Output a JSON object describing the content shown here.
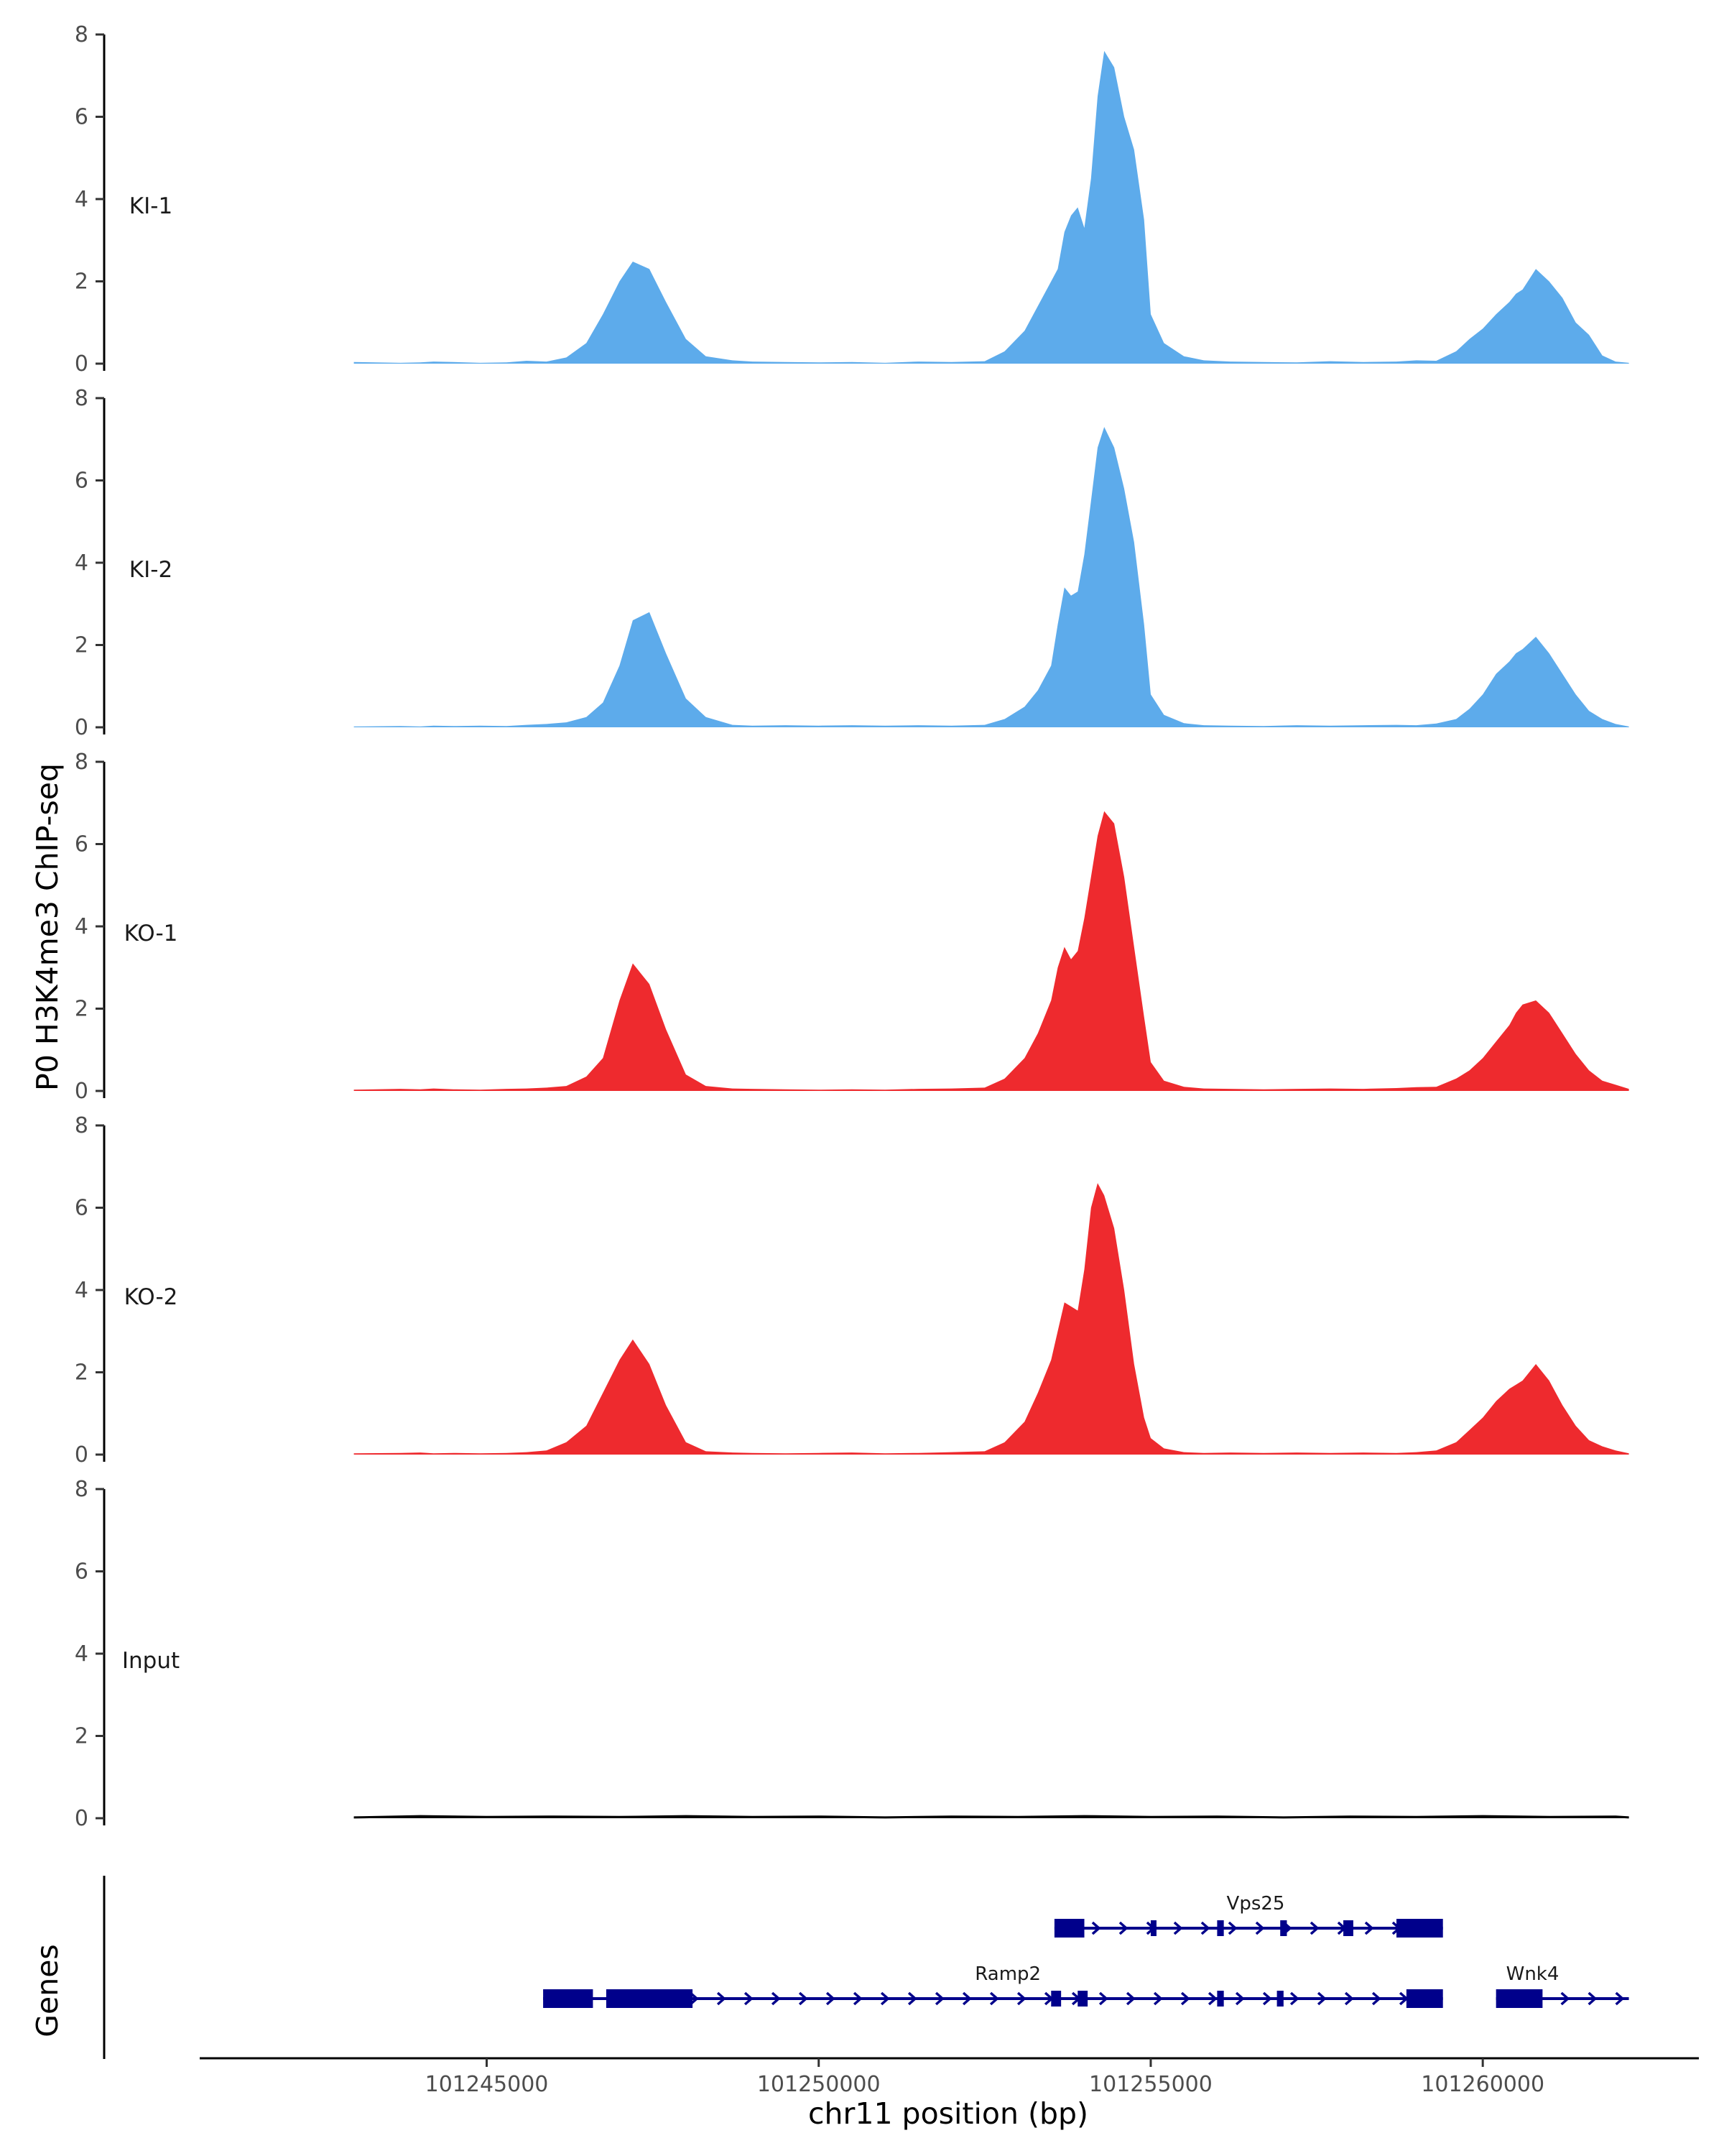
{
  "chart_data": {
    "type": "area",
    "ylabel": "P0 H3K4me3 ChIP-seq",
    "xlabel": "chr11 position (bp)",
    "genes_axis_label": "Genes",
    "ylim": [
      0,
      8
    ],
    "y_ticks": [
      "0",
      "2",
      "4",
      "6",
      "8"
    ],
    "xlim": [
      101240700,
      101263200
    ],
    "x_ticks": [
      {
        "value": 101245000,
        "label": "101245000"
      },
      {
        "value": 101250000,
        "label": "101250000"
      },
      {
        "value": 101255000,
        "label": "101255000"
      },
      {
        "value": 101260000,
        "label": "101260000"
      }
    ],
    "grid": false,
    "colors": {
      "KI": "#5dabeb",
      "KO": "#ee2a2e",
      "Input": "#000000",
      "genes": "#00008b"
    },
    "tracks": [
      {
        "name": "KI-1",
        "color": "#5dabeb",
        "x": [
          101243000,
          101243700,
          101244000,
          101244200,
          101244500,
          101244900,
          101245300,
          101245600,
          101245900,
          101246200,
          101246500,
          101246750,
          101247000,
          101247200,
          101247450,
          101247700,
          101248000,
          101248300,
          101248700,
          101249000,
          101249500,
          101250000,
          101250500,
          101251000,
          101251500,
          101252000,
          101252500,
          101252800,
          101253100,
          101253300,
          101253500,
          101253600,
          101253700,
          101253800,
          101253900,
          101254000,
          101254100,
          101254200,
          101254300,
          101254450,
          101254600,
          101254750,
          101254900,
          101255000,
          101255200,
          101255500,
          101255800,
          101256200,
          101256700,
          101257200,
          101257700,
          101258200,
          101258700,
          101259000,
          101259300,
          101259600,
          101259800,
          101260000,
          101260200,
          101260400,
          101260500,
          101260600,
          101260800,
          101261000,
          101261200,
          101261400,
          101261600,
          101261800,
          101262000,
          101262200
        ],
        "y": [
          0.04,
          0.02,
          0.03,
          0.05,
          0.04,
          0.02,
          0.03,
          0.07,
          0.05,
          0.15,
          0.5,
          1.2,
          2.0,
          2.48,
          2.3,
          1.5,
          0.6,
          0.18,
          0.08,
          0.05,
          0.04,
          0.03,
          0.04,
          0.02,
          0.05,
          0.04,
          0.06,
          0.3,
          0.8,
          1.4,
          2.0,
          2.3,
          3.2,
          3.6,
          3.8,
          3.3,
          4.5,
          6.5,
          7.6,
          7.2,
          6.0,
          5.2,
          3.5,
          1.2,
          0.5,
          0.18,
          0.08,
          0.05,
          0.04,
          0.03,
          0.06,
          0.04,
          0.05,
          0.08,
          0.07,
          0.3,
          0.6,
          0.85,
          1.2,
          1.5,
          1.7,
          1.8,
          2.3,
          2.0,
          1.6,
          1.0,
          0.7,
          0.2,
          0.05,
          0.02
        ]
      },
      {
        "name": "KI-2",
        "color": "#5dabeb",
        "x": [
          101243000,
          101243700,
          101244000,
          101244200,
          101244500,
          101244900,
          101245300,
          101245600,
          101245900,
          101246200,
          101246500,
          101246750,
          101247000,
          101247200,
          101247450,
          101247700,
          101248000,
          101248300,
          101248700,
          101249000,
          101249500,
          101250000,
          101250500,
          101251000,
          101251500,
          101252000,
          101252500,
          101252800,
          101253100,
          101253300,
          101253500,
          101253600,
          101253700,
          101253800,
          101253900,
          101254000,
          101254100,
          101254200,
          101254300,
          101254450,
          101254600,
          101254750,
          101254900,
          101255000,
          101255200,
          101255500,
          101255800,
          101256200,
          101256700,
          101257200,
          101257700,
          101258200,
          101258700,
          101259000,
          101259300,
          101259600,
          101259800,
          101260000,
          101260200,
          101260400,
          101260500,
          101260600,
          101260800,
          101261000,
          101261200,
          101261400,
          101261600,
          101261800,
          101262000,
          101262200
        ],
        "y": [
          0.02,
          0.03,
          0.02,
          0.04,
          0.03,
          0.04,
          0.03,
          0.06,
          0.08,
          0.12,
          0.25,
          0.6,
          1.5,
          2.6,
          2.8,
          1.8,
          0.7,
          0.25,
          0.06,
          0.04,
          0.05,
          0.04,
          0.05,
          0.04,
          0.05,
          0.04,
          0.06,
          0.2,
          0.5,
          0.9,
          1.5,
          2.5,
          3.4,
          3.2,
          3.3,
          4.2,
          5.5,
          6.8,
          7.3,
          6.8,
          5.8,
          4.5,
          2.5,
          0.8,
          0.3,
          0.1,
          0.05,
          0.04,
          0.03,
          0.05,
          0.04,
          0.05,
          0.06,
          0.05,
          0.09,
          0.2,
          0.45,
          0.8,
          1.3,
          1.6,
          1.8,
          1.9,
          2.2,
          1.8,
          1.3,
          0.8,
          0.4,
          0.2,
          0.08,
          0.02
        ]
      },
      {
        "name": "KO-1",
        "color": "#ee2a2e",
        "x": [
          101243000,
          101243700,
          101244000,
          101244200,
          101244500,
          101244900,
          101245300,
          101245600,
          101245900,
          101246200,
          101246500,
          101246750,
          101247000,
          101247200,
          101247450,
          101247700,
          101248000,
          101248300,
          101248700,
          101249000,
          101249500,
          101250000,
          101250500,
          101251000,
          101251500,
          101252000,
          101252500,
          101252800,
          101253100,
          101253300,
          101253500,
          101253600,
          101253700,
          101253800,
          101253900,
          101254000,
          101254100,
          101254200,
          101254300,
          101254450,
          101254600,
          101254750,
          101254900,
          101255000,
          101255200,
          101255500,
          101255800,
          101256200,
          101256700,
          101257200,
          101257700,
          101258200,
          101258700,
          101259000,
          101259300,
          101259600,
          101259800,
          101260000,
          101260200,
          101260400,
          101260500,
          101260600,
          101260800,
          101261000,
          101261200,
          101261400,
          101261600,
          101261800,
          101262000,
          101262200
        ],
        "y": [
          0.03,
          0.05,
          0.04,
          0.06,
          0.04,
          0.03,
          0.05,
          0.06,
          0.08,
          0.12,
          0.35,
          0.8,
          2.2,
          3.1,
          2.6,
          1.5,
          0.4,
          0.12,
          0.06,
          0.05,
          0.04,
          0.03,
          0.04,
          0.03,
          0.05,
          0.06,
          0.08,
          0.3,
          0.8,
          1.4,
          2.2,
          3.0,
          3.5,
          3.2,
          3.4,
          4.2,
          5.2,
          6.2,
          6.8,
          6.5,
          5.2,
          3.5,
          1.8,
          0.7,
          0.25,
          0.1,
          0.06,
          0.05,
          0.04,
          0.05,
          0.06,
          0.05,
          0.07,
          0.09,
          0.1,
          0.3,
          0.5,
          0.8,
          1.2,
          1.6,
          1.9,
          2.1,
          2.2,
          1.9,
          1.4,
          0.9,
          0.5,
          0.25,
          0.15,
          0.05
        ]
      },
      {
        "name": "KO-2",
        "color": "#ee2a2e",
        "x": [
          101243000,
          101243700,
          101244000,
          101244200,
          101244500,
          101244900,
          101245300,
          101245600,
          101245900,
          101246200,
          101246500,
          101246750,
          101247000,
          101247200,
          101247450,
          101247700,
          101248000,
          101248300,
          101248700,
          101249000,
          101249500,
          101250000,
          101250500,
          101251000,
          101251500,
          101252000,
          101252500,
          101252800,
          101253100,
          101253300,
          101253500,
          101253600,
          101253700,
          101253800,
          101253900,
          101254000,
          101254100,
          101254200,
          101254300,
          101254450,
          101254600,
          101254750,
          101254900,
          101255000,
          101255200,
          101255500,
          101255800,
          101256200,
          101256700,
          101257200,
          101257700,
          101258200,
          101258700,
          101259000,
          101259300,
          101259600,
          101259800,
          101260000,
          101260200,
          101260400,
          101260500,
          101260600,
          101260800,
          101261000,
          101261200,
          101261400,
          101261600,
          101261800,
          101262000,
          101262200
        ],
        "y": [
          0.03,
          0.04,
          0.05,
          0.03,
          0.04,
          0.03,
          0.04,
          0.06,
          0.1,
          0.3,
          0.7,
          1.5,
          2.3,
          2.8,
          2.2,
          1.2,
          0.3,
          0.08,
          0.05,
          0.04,
          0.03,
          0.04,
          0.05,
          0.03,
          0.04,
          0.06,
          0.08,
          0.3,
          0.8,
          1.5,
          2.3,
          3.0,
          3.7,
          3.6,
          3.5,
          4.5,
          6.0,
          6.6,
          6.3,
          5.5,
          4.0,
          2.2,
          0.9,
          0.4,
          0.15,
          0.06,
          0.04,
          0.05,
          0.04,
          0.05,
          0.04,
          0.05,
          0.04,
          0.06,
          0.1,
          0.3,
          0.6,
          0.9,
          1.3,
          1.6,
          1.7,
          1.8,
          2.2,
          1.8,
          1.2,
          0.7,
          0.35,
          0.2,
          0.1,
          0.03
        ]
      },
      {
        "name": "Input",
        "color": "#000000",
        "x": [
          101243000,
          101244000,
          101245000,
          101246000,
          101247000,
          101248000,
          101249000,
          101250000,
          101251000,
          101252000,
          101253000,
          101254000,
          101255000,
          101256000,
          101257000,
          101258000,
          101259000,
          101260000,
          101261000,
          101262000,
          101262200
        ],
        "y": [
          0.02,
          0.05,
          0.03,
          0.04,
          0.03,
          0.05,
          0.03,
          0.04,
          0.02,
          0.04,
          0.03,
          0.05,
          0.03,
          0.04,
          0.02,
          0.04,
          0.03,
          0.05,
          0.03,
          0.04,
          0.02
        ]
      }
    ],
    "genes": [
      {
        "name": "Vps25",
        "row": 1,
        "label_at": 101256580,
        "start": 101253550,
        "end": 101259400,
        "exons": [
          [
            101253550,
            101254000,
            "utr"
          ],
          [
            101255000,
            101255080,
            "cds"
          ],
          [
            101256000,
            101256100,
            "cds"
          ],
          [
            101256950,
            101257050,
            "cds"
          ],
          [
            101257900,
            101258050,
            "cds"
          ],
          [
            101258700,
            101259400,
            "utr"
          ]
        ]
      },
      {
        "name": "Ramp2",
        "row": 2,
        "label_at": 101252850,
        "start": 101245850,
        "end": 101259400,
        "exons": [
          [
            101245850,
            101246600,
            "utr"
          ],
          [
            101246800,
            101248100,
            "utr"
          ],
          [
            101253500,
            101253650,
            "cds"
          ],
          [
            101253900,
            101254050,
            "cds"
          ],
          [
            101256000,
            101256100,
            "cds"
          ],
          [
            101256900,
            101257000,
            "cds"
          ],
          [
            101258850,
            101259400,
            "utr"
          ]
        ]
      },
      {
        "name": "Wnk4",
        "row": 2,
        "label_at": 101260750,
        "start": 101260200,
        "end": 101262200,
        "exons": [
          [
            101260200,
            101260900,
            "utr"
          ]
        ]
      }
    ]
  }
}
